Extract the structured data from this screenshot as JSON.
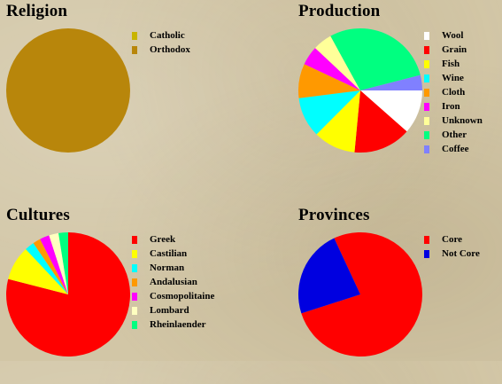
{
  "chart_data": [
    {
      "type": "pie",
      "title": "Religion",
      "labels": [
        "Catholic",
        "Orthodox"
      ],
      "values": [
        0,
        100
      ],
      "colors": [
        "#c8b400",
        "#b8860b"
      ]
    },
    {
      "type": "pie",
      "title": "Production",
      "labels": [
        "Wool",
        "Grain",
        "Fish",
        "Wine",
        "Cloth",
        "Iron",
        "Unknown",
        "Other",
        "Coffee"
      ],
      "values": [
        11.5,
        15,
        11,
        10.5,
        9,
        5,
        5,
        29,
        4
      ],
      "colors": [
        "#ffffff",
        "#ff0000",
        "#ffff00",
        "#00ffff",
        "#ff9900",
        "#ff00ff",
        "#ffff99",
        "#00ff80",
        "#8080ff"
      ]
    },
    {
      "type": "pie",
      "title": "Cultures",
      "labels": [
        "Greek",
        "Castilian",
        "Norman",
        "Andalusian",
        "Cosmopolitaine",
        "Lombard",
        "Rheinlaender"
      ],
      "values": [
        79,
        9,
        2.5,
        2,
        2.5,
        2.5,
        2.5
      ],
      "colors": [
        "#ff0000",
        "#ffff00",
        "#00ffff",
        "#ff9900",
        "#ff00ff",
        "#ffffc0",
        "#00ff80"
      ]
    },
    {
      "type": "pie",
      "title": "Provinces",
      "labels": [
        "Core",
        "Not Core"
      ],
      "values": [
        77,
        23
      ],
      "colors": [
        "#ff0000",
        "#0000e0"
      ]
    }
  ]
}
